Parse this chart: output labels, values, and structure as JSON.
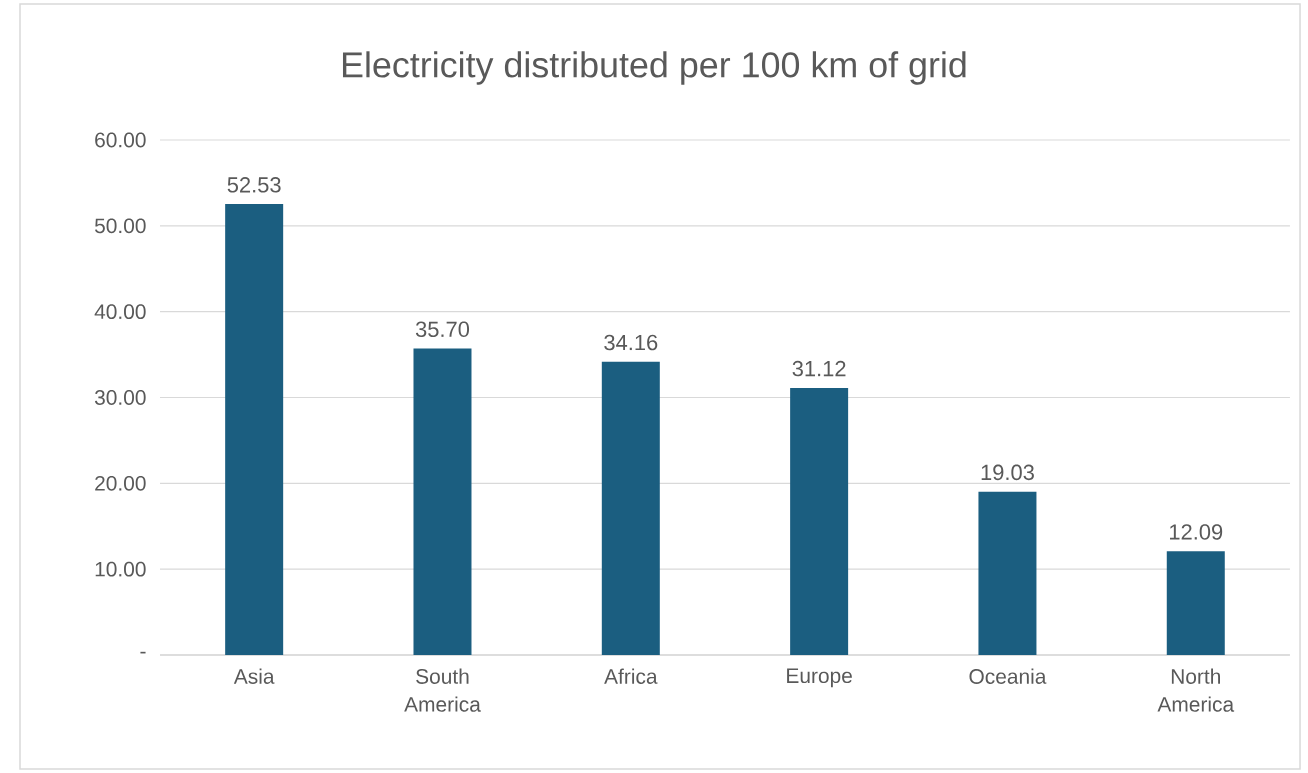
{
  "chart_data": {
    "type": "bar",
    "title": "Electricity distributed per 100 km of grid",
    "categories": [
      "Asia",
      "South America",
      "Africa",
      "Europe",
      "Oceania",
      "North America"
    ],
    "values": [
      52.53,
      35.7,
      34.16,
      31.12,
      19.03,
      12.09
    ],
    "value_labels": [
      "52.53",
      "35.70",
      "34.16",
      "31.12",
      "19.03",
      "12.09"
    ],
    "color": "#1b5e80",
    "ylim": [
      0,
      60
    ],
    "yticks": [
      {
        "value": 0,
        "label": "-"
      },
      {
        "value": 10,
        "label": "10.00"
      },
      {
        "value": 20,
        "label": "20.00"
      },
      {
        "value": 30,
        "label": "30.00"
      },
      {
        "value": 40,
        "label": "40.00"
      },
      {
        "value": 50,
        "label": "50.00"
      },
      {
        "value": 60,
        "label": "60.00"
      }
    ],
    "grid": "y"
  }
}
